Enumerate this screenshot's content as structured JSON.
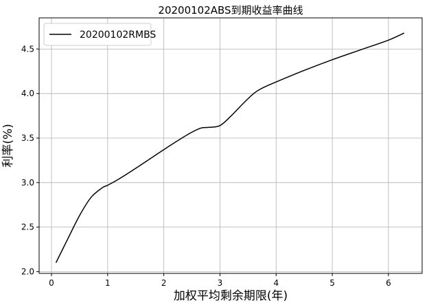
{
  "chart_data": {
    "type": "line",
    "title": "20200102ABS到期收益率曲线",
    "xlabel": "加权平均剩余期限(年)",
    "ylabel": "利率(%)",
    "xlim": [
      -0.22,
      6.6
    ],
    "ylim": [
      1.98,
      4.85
    ],
    "xticks": [
      0,
      1,
      2,
      3,
      4,
      5,
      6
    ],
    "yticks": [
      2.0,
      2.5,
      3.0,
      3.5,
      4.0,
      4.5
    ],
    "xtick_labels": [
      "0",
      "1",
      "2",
      "3",
      "4",
      "5",
      "6"
    ],
    "ytick_labels": [
      "2.0",
      "2.5",
      "3.0",
      "3.5",
      "4.0",
      "4.5"
    ],
    "grid": true,
    "legend_position": "top-left",
    "series": [
      {
        "name": "20200102RMBS",
        "color": "#000000",
        "x": [
          0.08,
          0.3,
          0.5,
          0.7,
          0.9,
          1.0,
          1.2,
          1.5,
          2.0,
          2.4,
          2.65,
          2.8,
          3.0,
          3.2,
          3.4,
          3.6,
          3.75,
          4.0,
          4.5,
          5.0,
          5.5,
          6.0,
          6.28
        ],
        "y": [
          2.1,
          2.38,
          2.63,
          2.83,
          2.94,
          2.97,
          3.04,
          3.16,
          3.37,
          3.53,
          3.61,
          3.62,
          3.64,
          3.75,
          3.88,
          4.0,
          4.06,
          4.13,
          4.26,
          4.38,
          4.49,
          4.6,
          4.68
        ]
      }
    ]
  }
}
